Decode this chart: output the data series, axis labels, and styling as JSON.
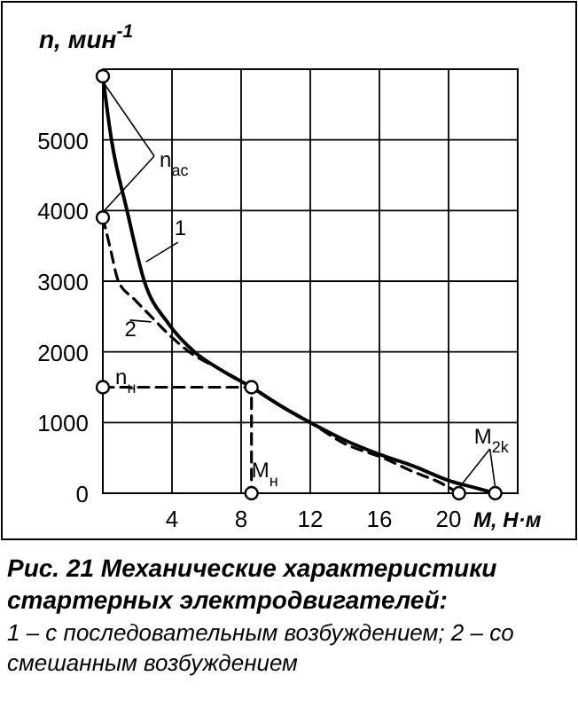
{
  "chart_data": {
    "type": "line",
    "title": "Рис. 21   Механические характеристики стартерных электродвигателей:",
    "subtitle": "1 – с последовательным возбуждением; 2 – со смешанным возбуждением",
    "xlabel": "M, Н·м",
    "ylabel": "n, мин$^{-1}$",
    "xlim": [
      0,
      24
    ],
    "xticks": [
      {
        "value": 0,
        "label": null
      },
      4,
      8,
      12,
      16,
      20,
      {
        "value": 24,
        "label": null
      }
    ],
    "ylim": [
      0,
      6000
    ],
    "yticks": [
      0,
      1000,
      2000,
      3000,
      4000,
      5000,
      {
        "value": 6000,
        "label": null
      }
    ],
    "grid": true,
    "series": [
      {
        "color": "#000000",
        "line_style": "solid",
        "x": [
          0,
          0.5,
          1.4,
          2.4,
          3.8,
          5.3,
          6.8,
          8.6,
          10.2,
          12,
          14,
          16,
          18,
          20,
          21.5,
          22.7
        ],
        "values": [
          5900,
          5000,
          4000,
          3000,
          2400,
          2000,
          1750,
          1500,
          1250,
          1000,
          750,
          550,
          380,
          180,
          80,
          0
        ]
      },
      {
        "color": "#000000",
        "line_style": "dashed",
        "x": [
          0,
          0.4,
          0.9,
          1.8,
          2.8,
          3.8,
          5,
          6.8,
          8.6,
          10.2,
          12,
          14,
          16.2,
          18,
          19.5,
          20.6
        ],
        "values": [
          3900,
          3500,
          3000,
          2750,
          2500,
          2250,
          2000,
          1750,
          1500,
          1250,
          1000,
          700,
          500,
          300,
          150,
          0
        ]
      },
      {
        "color": "#000000",
        "line_style": "dashed",
        "x": [
          0,
          8.6,
          8.6
        ],
        "values": [
          1500,
          1500,
          0
        ]
      },
      {
        "type": "scatter",
        "marker": "circle",
        "color": "#000000",
        "x": [
          0,
          0,
          0,
          8.6,
          8.6,
          20.6,
          22.7
        ],
        "values": [
          5900,
          3900,
          1500,
          1500,
          0,
          0,
          0
        ]
      }
    ],
    "annotations": [
      {
        "text": "n$_{ас}$",
        "x": 0,
        "y": 5900
      },
      {
        "text": "1",
        "x": 2.5,
        "y": 3200
      },
      {
        "text": "2",
        "x": 2.8,
        "y": 2500
      },
      {
        "text": "n$_{н}$",
        "x": 0,
        "y": 1500
      },
      {
        "text": "M$_{н}$",
        "x": 8.6,
        "y": 0
      },
      {
        "text": "M$_{2k}$",
        "x": 22.7,
        "y": 0
      }
    ]
  }
}
